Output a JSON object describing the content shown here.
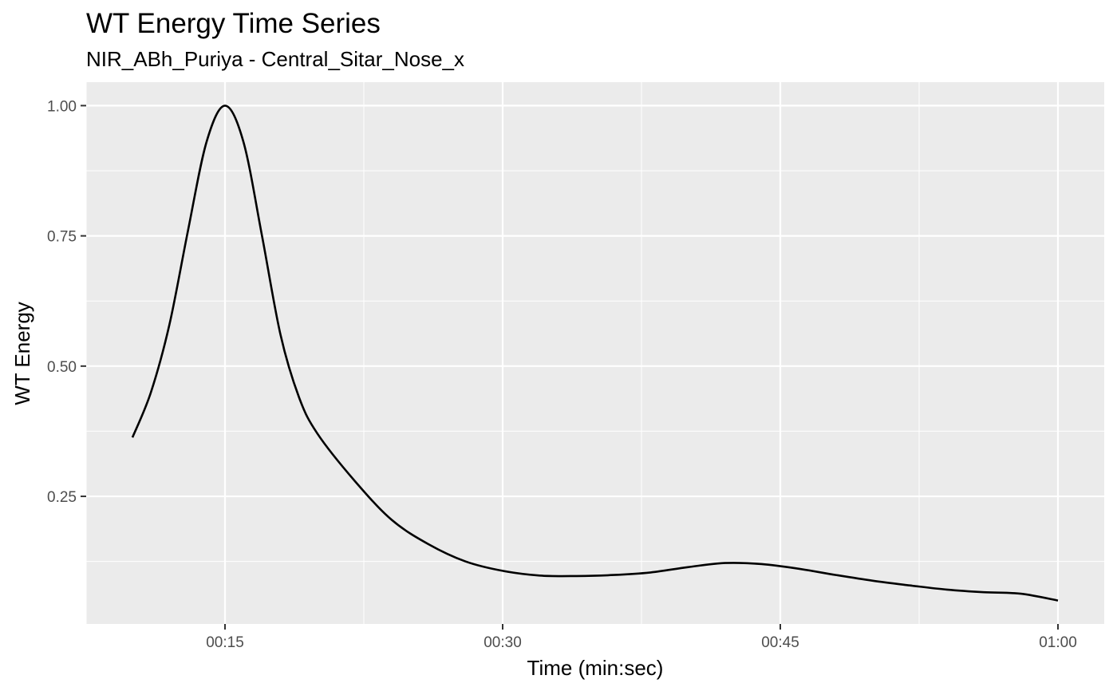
{
  "chart_data": {
    "type": "line",
    "title": "WT Energy Time Series",
    "subtitle": "NIR_ABh_Puriya - Central_Sitar_Nose_x",
    "xlabel": "Time (min:sec)",
    "ylabel": "WT Energy",
    "x_tick_labels": [
      "00:15",
      "00:30",
      "00:45",
      "01:00"
    ],
    "x_tick_values": [
      15,
      30,
      45,
      60
    ],
    "y_tick_labels": [
      "0.25",
      "0.50",
      "0.75",
      "1.00"
    ],
    "y_tick_values": [
      0.25,
      0.5,
      0.75,
      1.0
    ],
    "xlim": [
      7.5,
      62.5
    ],
    "ylim": [
      0.005,
      1.045
    ],
    "grid": true,
    "background": "#ebebeb",
    "grid_color": "#ffffff",
    "line_color": "#000000",
    "series": [
      {
        "x": [
          10,
          11,
          12,
          13,
          14,
          15,
          16,
          17,
          18,
          19,
          20,
          22,
          24,
          26,
          28,
          30,
          32,
          34,
          36,
          38,
          40,
          42,
          44,
          46,
          48,
          50,
          52,
          54,
          56,
          58,
          60
        ],
        "values": [
          0.363,
          0.45,
          0.58,
          0.76,
          0.93,
          1.0,
          0.93,
          0.75,
          0.56,
          0.44,
          0.37,
          0.28,
          0.205,
          0.158,
          0.125,
          0.107,
          0.098,
          0.097,
          0.099,
          0.104,
          0.114,
          0.122,
          0.12,
          0.111,
          0.099,
          0.088,
          0.079,
          0.071,
          0.066,
          0.063,
          0.05
        ]
      }
    ]
  }
}
